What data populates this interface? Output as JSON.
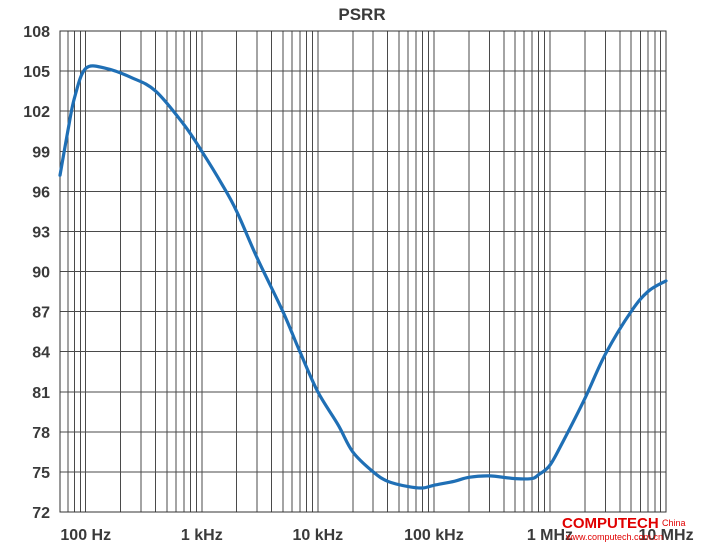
{
  "chart_data": {
    "type": "line",
    "title": "PSRR",
    "xscale": "log",
    "xlim": [
      60,
      10000000
    ],
    "ylim": [
      72,
      108
    ],
    "grid": true,
    "yticks": [
      72,
      75,
      78,
      81,
      84,
      87,
      90,
      93,
      96,
      99,
      102,
      105,
      108
    ],
    "xticks": [
      {
        "value": 100,
        "label": "100 Hz"
      },
      {
        "value": 1000,
        "label": "1 kHz"
      },
      {
        "value": 10000,
        "label": "10 kHz"
      },
      {
        "value": 100000,
        "label": "100 kHz"
      },
      {
        "value": 1000000,
        "label": "1 MHz"
      },
      {
        "value": 10000000,
        "label": "10 MHz"
      }
    ],
    "line_color": "#1f6fb5",
    "series": [
      {
        "x": [
          60,
          70,
          80,
          100,
          150,
          250,
          400,
          700,
          1000,
          1500,
          2000,
          3000,
          5000,
          7000,
          10000,
          15000,
          20000,
          30000,
          40000,
          60000,
          80000,
          100000,
          150000,
          200000,
          300000,
          500000,
          700000,
          800000,
          1000000,
          1300000,
          2000000,
          3000000,
          5000000,
          7000000,
          10000000
        ],
        "y": [
          97.2,
          100.5,
          103.0,
          105.2,
          105.2,
          104.5,
          103.5,
          101.0,
          99.0,
          96.5,
          94.5,
          91.0,
          87.0,
          84.0,
          81.0,
          78.5,
          76.5,
          75.0,
          74.3,
          73.9,
          73.8,
          74.0,
          74.3,
          74.6,
          74.7,
          74.5,
          74.5,
          74.8,
          75.5,
          77.3,
          80.5,
          83.8,
          87.0,
          88.5,
          89.3
        ]
      }
    ]
  },
  "watermark": {
    "brand": "COMPUTECH",
    "suffix": "China",
    "url": "www.computech.com.cn"
  }
}
